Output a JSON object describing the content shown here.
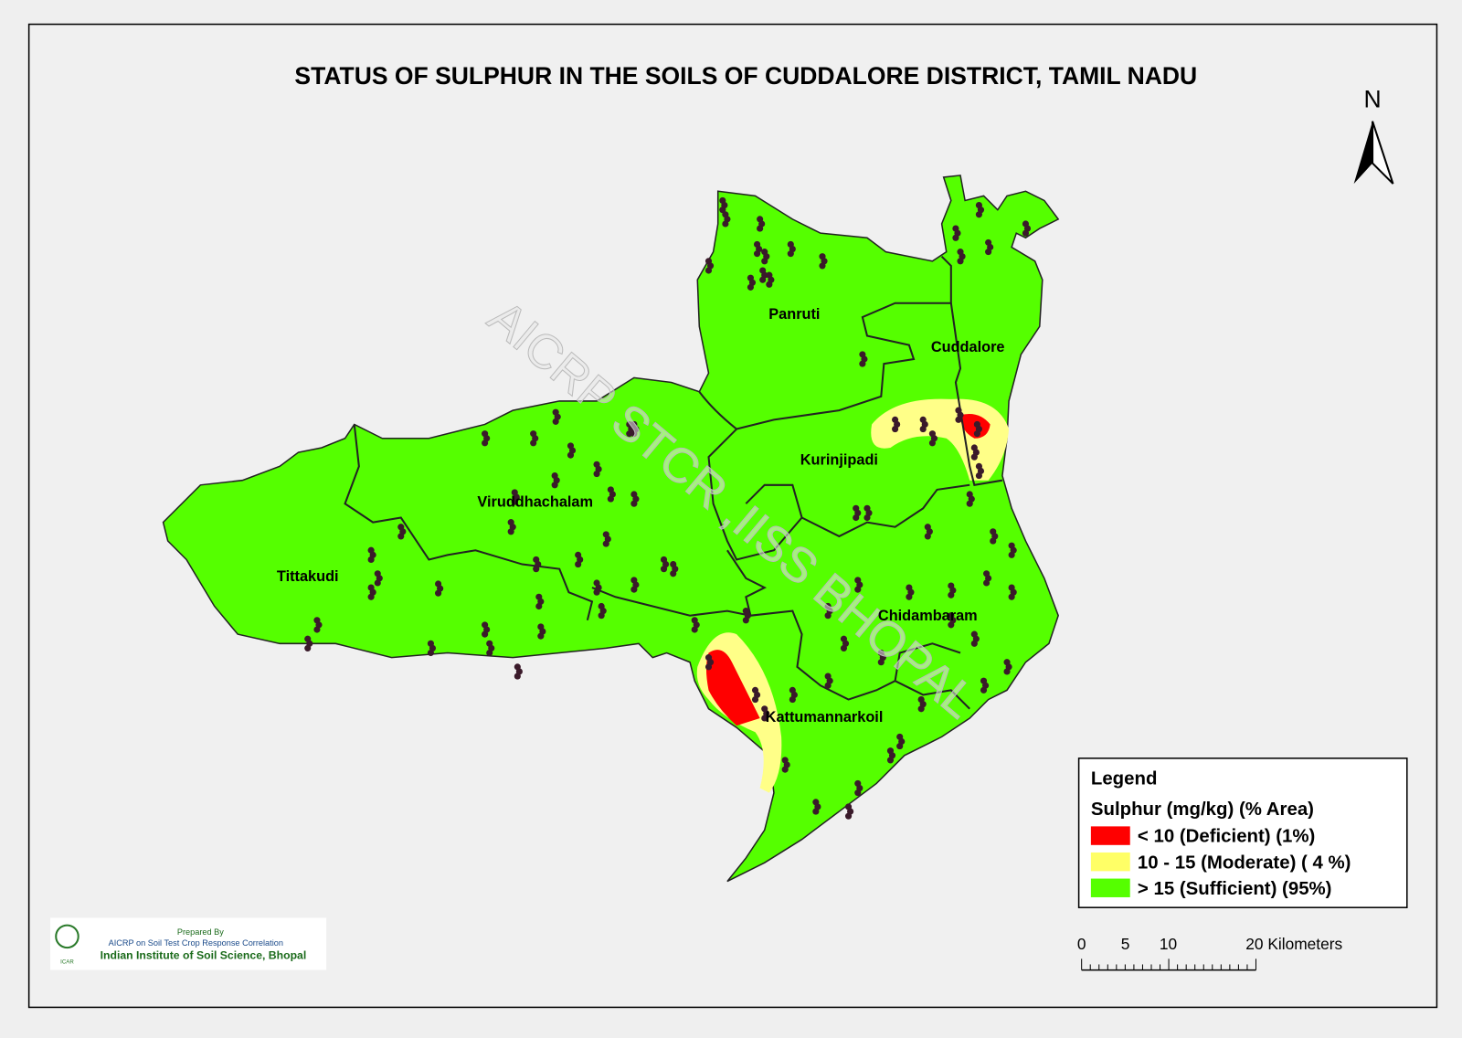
{
  "title": "STATUS OF SULPHUR  IN THE SOILS OF CUDDALORE DISTRICT, TAMIL NADU",
  "north": "N",
  "watermark": "AICRP STCR ,IISS BHOPAL",
  "districts": [
    {
      "label": "Panruti"
    },
    {
      "label": "Cuddalore"
    },
    {
      "label": "Kurinjipadi"
    },
    {
      "label": "Viruddhachalam"
    },
    {
      "label": "Tittakudi"
    },
    {
      "label": "Chidambaram"
    },
    {
      "label": "Kattumannarkoil"
    }
  ],
  "legend": {
    "title": "Legend",
    "subtitle": "Sulphur (mg/kg) (% Area)",
    "items": [
      {
        "label": "< 10 (Deficient) (1%)",
        "color": "#ff0000"
      },
      {
        "label": "10 - 15  (Moderate) ( 4 %)",
        "color": "#ffff66"
      },
      {
        "label": "> 15  (Sufficient) (95%)",
        "color": "#55ff00"
      }
    ]
  },
  "scale": {
    "labels": [
      "0",
      "5",
      "10",
      "20 Kilometers"
    ]
  },
  "credit": {
    "line1": "Prepared By",
    "line2": "AICRP on Soil Test Crop Response Correlation",
    "line3": "Indian Institute of Soil Science, Bhopal",
    "logo": "ICAR"
  }
}
